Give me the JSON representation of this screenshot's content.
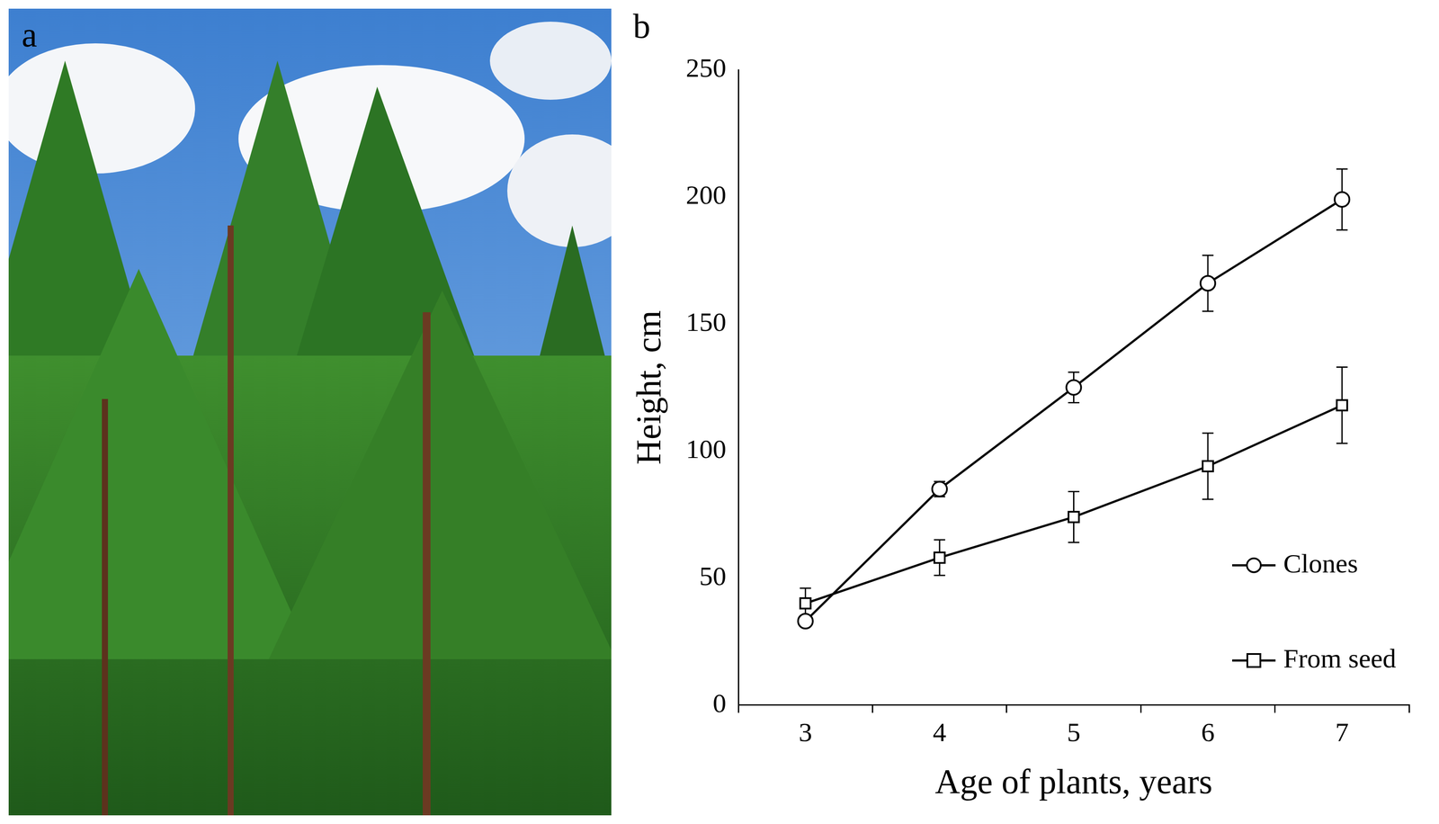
{
  "panel_labels": [
    "a",
    "b"
  ],
  "chart_data": {
    "type": "line",
    "x_label": "Age of plants, years",
    "y_label": "Height, cm",
    "categories": [
      3,
      4,
      5,
      6,
      7
    ],
    "ylim": [
      0,
      250
    ],
    "yticks": [
      0,
      50,
      100,
      150,
      200,
      250
    ],
    "grid": false,
    "legend": "lower right",
    "series": [
      {
        "name": "Clones",
        "color": "#000000",
        "marker": "circle",
        "line_style": "solid",
        "values": [
          33,
          85,
          125,
          166,
          199
        ],
        "errors": [
          2,
          3,
          6,
          11,
          12
        ]
      },
      {
        "name": "From seed",
        "color": "#000000",
        "marker": "square",
        "line_style": "solid",
        "values": [
          40,
          58,
          74,
          94,
          118
        ],
        "errors": [
          6,
          7,
          10,
          13,
          15
        ]
      }
    ]
  }
}
